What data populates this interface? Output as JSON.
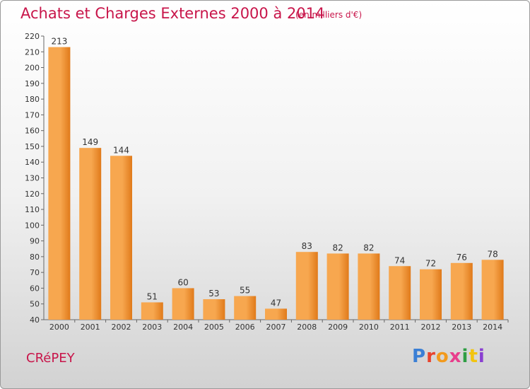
{
  "header": {
    "title": "Achats et Charges Externes 2000 à 2014",
    "subtitle": "(en milliers d'€)"
  },
  "footer": {
    "commune": "CRéPEY",
    "logo": {
      "text": "Proxiti",
      "letter_colors": [
        "#3a7fd5",
        "#e8432d",
        "#f29a1d",
        "#e83e8c",
        "#2f9e44",
        "#f2c40f",
        "#8a3fd1"
      ]
    }
  },
  "colors": {
    "bar_light": "#f7a74f",
    "bar_dark": "#e07a1a",
    "text": "#c8154a",
    "axis": "#666666"
  },
  "chart_data": {
    "type": "bar",
    "title": "Achats et Charges Externes 2000 à 2014",
    "subtitle": "(en milliers d'€)",
    "categories": [
      "2000",
      "2001",
      "2002",
      "2003",
      "2004",
      "2005",
      "2006",
      "2007",
      "2008",
      "2009",
      "2010",
      "2011",
      "2012",
      "2013",
      "2014"
    ],
    "values": [
      213,
      149,
      144,
      51,
      60,
      53,
      55,
      47,
      83,
      82,
      82,
      74,
      72,
      76,
      78
    ],
    "ylim": [
      40,
      220
    ],
    "yticks": [
      40,
      50,
      60,
      70,
      80,
      90,
      100,
      110,
      120,
      130,
      140,
      150,
      160,
      170,
      180,
      190,
      200,
      210,
      220
    ],
    "grid": false,
    "legend": "none"
  }
}
